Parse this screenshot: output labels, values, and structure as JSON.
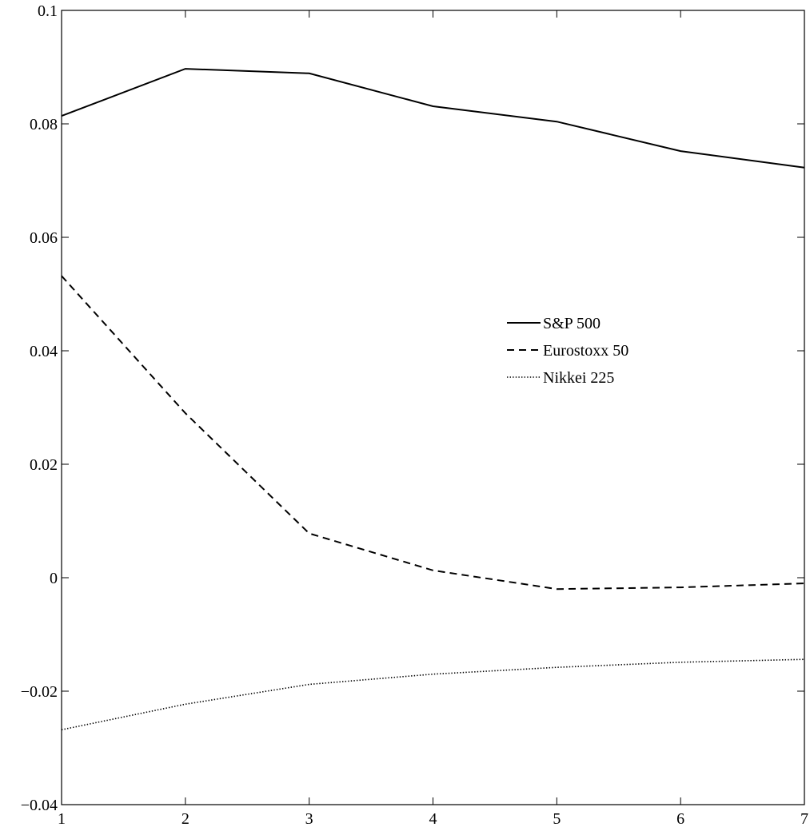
{
  "chart_data": {
    "type": "line",
    "title": "",
    "xlabel": "",
    "ylabel": "",
    "x": [
      1,
      2,
      3,
      4,
      5,
      6,
      7
    ],
    "xlim": [
      1,
      7
    ],
    "ylim": [
      -0.04,
      0.1
    ],
    "xticks": [
      "1",
      "2",
      "3",
      "4",
      "5",
      "6",
      "7"
    ],
    "yticks": [
      {
        "v": -0.04,
        "label": "−0.04"
      },
      {
        "v": -0.02,
        "label": "−0.02"
      },
      {
        "v": 0,
        "label": "0"
      },
      {
        "v": 0.02,
        "label": "0.02"
      },
      {
        "v": 0.04,
        "label": "0.04"
      },
      {
        "v": 0.06,
        "label": "0.06"
      },
      {
        "v": 0.08,
        "label": "0.08"
      },
      {
        "v": 0.1,
        "label": "0.1"
      }
    ],
    "grid": false,
    "legend_position": "center-right",
    "series": [
      {
        "name": "S&P 500",
        "style": "solid",
        "color": "#000000",
        "values": [
          0.0814,
          0.0897,
          0.0889,
          0.0831,
          0.0804,
          0.0752,
          0.0723
        ]
      },
      {
        "name": "Eurostoxx 50",
        "style": "dashed",
        "color": "#000000",
        "values": [
          0.0532,
          0.029,
          0.0078,
          0.0013,
          -0.002,
          -0.0017,
          -0.001
        ]
      },
      {
        "name": "Nikkei 225",
        "style": "dotted",
        "color": "#000000",
        "values": [
          -0.0268,
          -0.0223,
          -0.0188,
          -0.017,
          -0.0158,
          -0.0149,
          -0.0144
        ]
      }
    ]
  }
}
